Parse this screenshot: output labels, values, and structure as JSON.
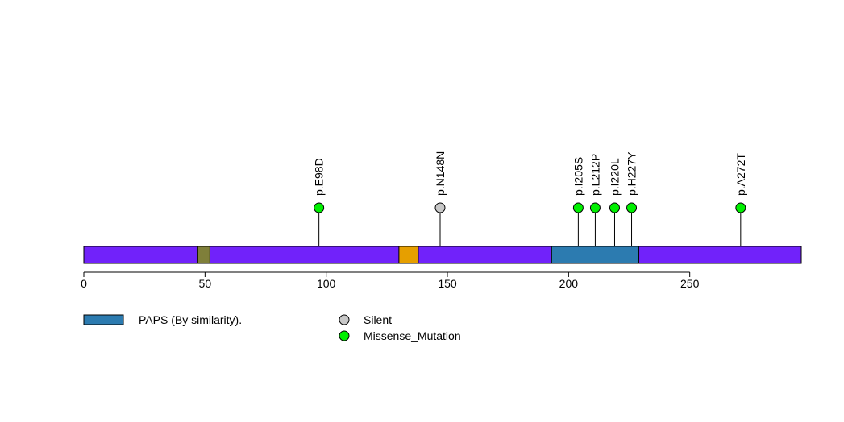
{
  "chart_data": {
    "type": "lollipop",
    "protein_length": 296,
    "xlim": [
      0,
      296
    ],
    "x_ticks": [
      0,
      50,
      100,
      150,
      200,
      250
    ],
    "backbone_color": "#7122FA",
    "domains": [
      {
        "name": "",
        "start": 47,
        "end": 52,
        "color": "#7F7F3A"
      },
      {
        "name": "",
        "start": 130,
        "end": 138,
        "color": "#E69F00"
      },
      {
        "name": "PAPS (By similarity).",
        "start": 193,
        "end": 229,
        "color": "#2C7BB0"
      }
    ],
    "mutations": [
      {
        "label": "p.E98D",
        "position": 97,
        "type": "Missense_Mutation"
      },
      {
        "label": "p.N148N",
        "position": 147,
        "type": "Silent"
      },
      {
        "label": "p.I205S",
        "position": 204,
        "type": "Missense_Mutation"
      },
      {
        "label": "p.L212P",
        "position": 211,
        "type": "Missense_Mutation"
      },
      {
        "label": "p.I220L",
        "position": 219,
        "type": "Missense_Mutation"
      },
      {
        "label": "p.H227Y",
        "position": 226,
        "type": "Missense_Mutation"
      },
      {
        "label": "p.A272T",
        "position": 271,
        "type": "Missense_Mutation"
      }
    ],
    "mutation_colors": {
      "Silent": "#C8C8C8",
      "Missense_Mutation": "#00F000"
    },
    "legend": {
      "domains": [
        {
          "label": "PAPS (By similarity).",
          "color": "#2C7BB0"
        }
      ],
      "mutation_types": [
        {
          "label": "Silent",
          "color": "#C8C8C8"
        },
        {
          "label": "Missense_Mutation",
          "color": "#00F000"
        }
      ]
    }
  }
}
